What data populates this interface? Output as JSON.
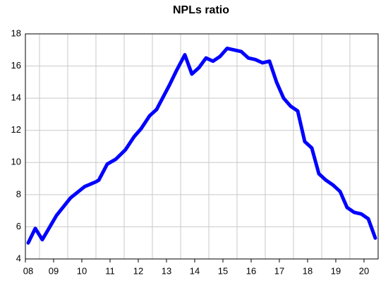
{
  "chart_data": {
    "type": "line",
    "title": "NPLs ratio",
    "x": [
      8.6,
      8.85,
      9.1,
      9.6,
      10.1,
      10.6,
      11.0,
      11.1,
      11.4,
      11.7,
      12.05,
      12.35,
      12.6,
      12.9,
      13.15,
      13.6,
      13.85,
      14.15,
      14.4,
      14.65,
      14.9,
      15.15,
      15.4,
      15.65,
      15.9,
      16.15,
      16.4,
      16.65,
      16.9,
      17.15,
      17.4,
      17.65,
      17.9,
      18.15,
      18.4,
      18.65,
      18.9,
      19.15,
      19.4,
      19.65,
      19.9,
      20.15,
      20.4,
      20.65,
      20.9
    ],
    "series": [
      {
        "color": "#0000ff",
        "values": [
          5.0,
          5.9,
          5.2,
          6.7,
          7.8,
          8.5,
          8.8,
          8.9,
          9.9,
          10.2,
          10.8,
          11.6,
          12.1,
          12.9,
          13.3,
          14.8,
          15.7,
          16.7,
          15.5,
          15.9,
          16.5,
          16.3,
          16.6,
          17.1,
          17.0,
          16.9,
          16.5,
          16.4,
          16.2,
          16.3,
          15.0,
          14.0,
          13.5,
          13.2,
          11.3,
          10.9,
          9.3,
          8.9,
          8.6,
          8.2,
          7.2,
          6.9,
          6.8,
          6.5,
          5.3
        ]
      }
    ],
    "xlim": [
      8.5,
      21.0
    ],
    "xticks": [
      {
        "value": 8.5,
        "label": "08"
      },
      {
        "value": 9.5,
        "label": "09"
      },
      {
        "value": 10.5,
        "label": "10"
      },
      {
        "value": 11.5,
        "label": "11"
      },
      {
        "value": 12.5,
        "label": "12"
      },
      {
        "value": 13.5,
        "label": "13"
      },
      {
        "value": 14.5,
        "label": "14"
      },
      {
        "value": 15.5,
        "label": "15"
      },
      {
        "value": 16.5,
        "label": "16"
      },
      {
        "value": 17.5,
        "label": "17"
      },
      {
        "value": 18.5,
        "label": "18"
      },
      {
        "value": 19.5,
        "label": "19"
      },
      {
        "value": 20.5,
        "label": "20"
      }
    ],
    "ylim": [
      4,
      18
    ],
    "yticks": [
      4,
      6,
      8,
      10,
      12,
      14,
      16,
      18
    ],
    "grid": true
  }
}
